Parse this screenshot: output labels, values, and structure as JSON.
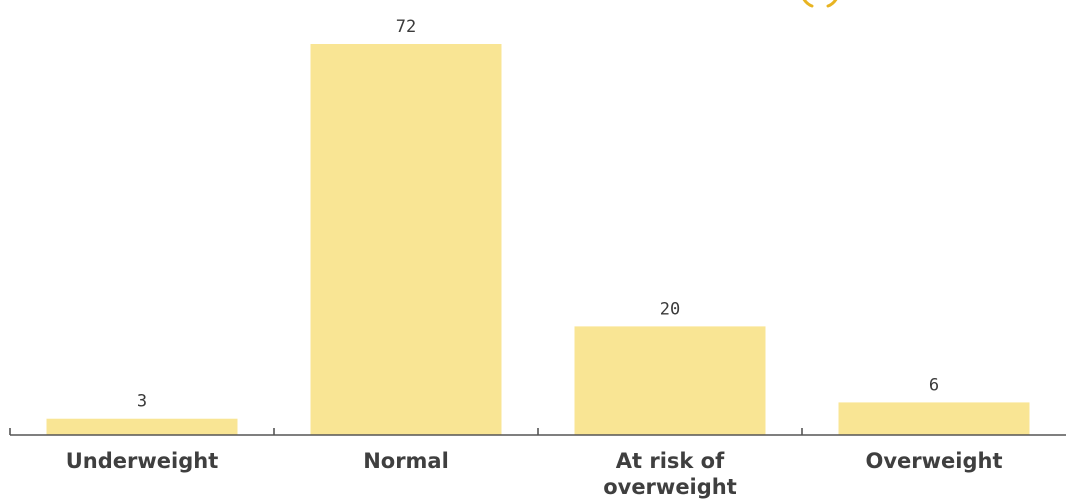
{
  "chart_data": {
    "type": "bar",
    "categories": [
      "Underweight",
      "Normal",
      "At risk of overweight",
      "Overweight"
    ],
    "category_lines": [
      [
        "Underweight"
      ],
      [
        "Normal"
      ],
      [
        "At risk of",
        "overweight"
      ],
      [
        "Overweight"
      ]
    ],
    "values": [
      3,
      72,
      20,
      6
    ],
    "value_labels": [
      "3",
      "72",
      "20",
      "6"
    ],
    "ylim": [
      0,
      72
    ],
    "title": "",
    "xlabel": "",
    "ylabel": "",
    "grid": false,
    "bar_color": "#f9e594",
    "accent_color": "#e8b422"
  }
}
